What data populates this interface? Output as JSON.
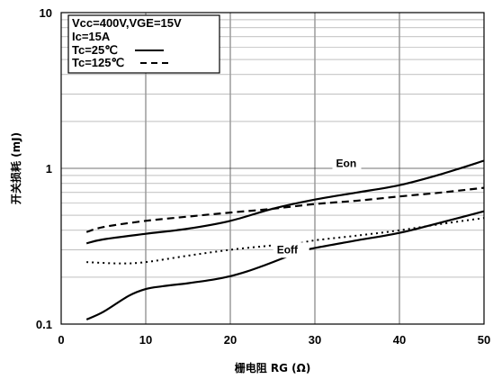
{
  "chart_data": {
    "type": "line",
    "title": "",
    "xlabel": "栅电阻 RG (Ω)",
    "ylabel": "开关损耗 (mJ)",
    "xlim": [
      0,
      50
    ],
    "ylim": [
      0.1,
      10
    ],
    "yscale": "log",
    "grid": true,
    "xticks": [
      "0",
      "10",
      "20",
      "30",
      "40",
      "50"
    ],
    "yticks": [
      "0.1",
      "1",
      "10"
    ],
    "legend": {
      "placement": "top-left",
      "lines": [
        "Vcc=400V,VGE=15V",
        "Ic=15A",
        "Tc=25℃",
        "Tc=125℃"
      ]
    },
    "annotations": [
      {
        "text": "Eon",
        "x": 32.5,
        "y": 1.02
      },
      {
        "text": "Eoff",
        "x": 25.5,
        "y": 0.285
      }
    ],
    "series": [
      {
        "curve": "Eon",
        "condition": "Tc=25℃",
        "style": "solid",
        "x": [
          3,
          5,
          10,
          15,
          20,
          25,
          30,
          35,
          40,
          45,
          50
        ],
        "y": [
          0.33,
          0.35,
          0.38,
          0.41,
          0.46,
          0.55,
          0.63,
          0.7,
          0.78,
          0.92,
          1.12
        ]
      },
      {
        "curve": "Eon",
        "condition": "Tc=125℃",
        "style": "dashed",
        "x": [
          3,
          5,
          10,
          15,
          20,
          25,
          30,
          35,
          40,
          45,
          50
        ],
        "y": [
          0.39,
          0.42,
          0.46,
          0.49,
          0.52,
          0.55,
          0.59,
          0.62,
          0.66,
          0.7,
          0.75
        ]
      },
      {
        "curve": "Eoff",
        "condition": "Tc=25℃",
        "style": "solid",
        "x": [
          3,
          5,
          8,
          10,
          12,
          15,
          18,
          20,
          22,
          24,
          26,
          28,
          30,
          35,
          40,
          45,
          50
        ],
        "y": [
          0.107,
          0.12,
          0.152,
          0.168,
          0.175,
          0.183,
          0.193,
          0.203,
          0.218,
          0.238,
          0.262,
          0.29,
          0.308,
          0.345,
          0.385,
          0.45,
          0.53
        ]
      },
      {
        "curve": "Eoff",
        "condition": "Tc=125℃",
        "style": "dotted",
        "x": [
          3,
          7,
          10,
          15,
          20,
          25,
          28,
          30,
          35,
          40,
          45,
          50
        ],
        "y": [
          0.25,
          0.245,
          0.25,
          0.275,
          0.3,
          0.32,
          0.33,
          0.345,
          0.37,
          0.4,
          0.44,
          0.48
        ]
      }
    ]
  }
}
